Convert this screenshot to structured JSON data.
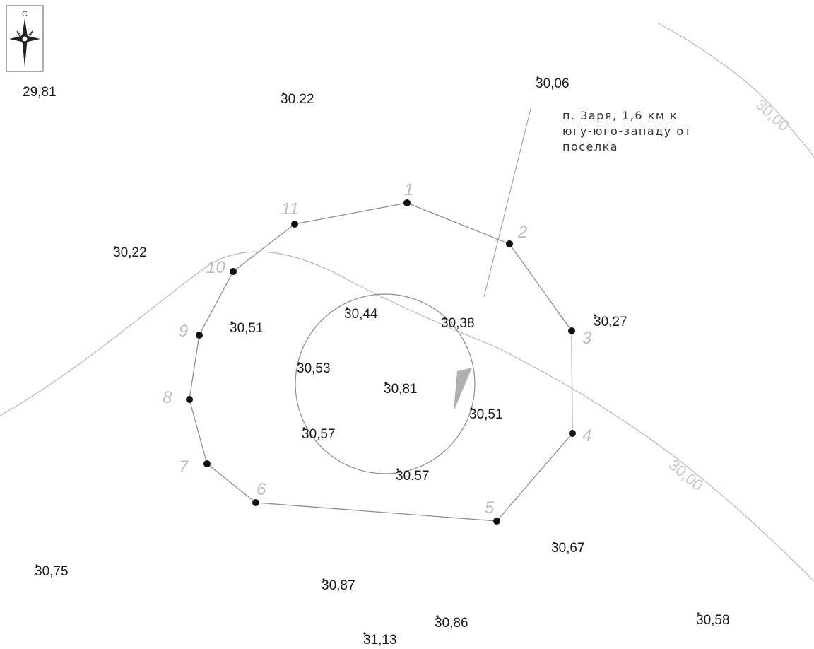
{
  "colors": {
    "background": "#ffffff",
    "boundary_line": "#9a9a9a",
    "contour_line": "#b5b5b5",
    "vertex": "#111111",
    "text": "#1a1a1a"
  },
  "compass": {
    "icon": "north-arrow-icon",
    "north_letter": "С"
  },
  "note": {
    "line1": "п. Заря, 1,6 км к",
    "line2": "югу-юго-западу от",
    "line3": "поселка"
  },
  "elevations": [
    "29,81",
    "30.22",
    "30,06",
    "30,22",
    "30,51",
    "30,44",
    "30,38",
    "30,27",
    "30,53",
    "30,81",
    "30,51",
    "30,57",
    "30.57",
    "30,75",
    "30,67",
    "30,87",
    "30,86",
    "31,13",
    "30,58"
  ],
  "vertices": [
    "1",
    "2",
    "3",
    "4",
    "5",
    "6",
    "7",
    "8",
    "9",
    "10",
    "11"
  ],
  "contour_labels": [
    "30,00",
    "30,00"
  ]
}
